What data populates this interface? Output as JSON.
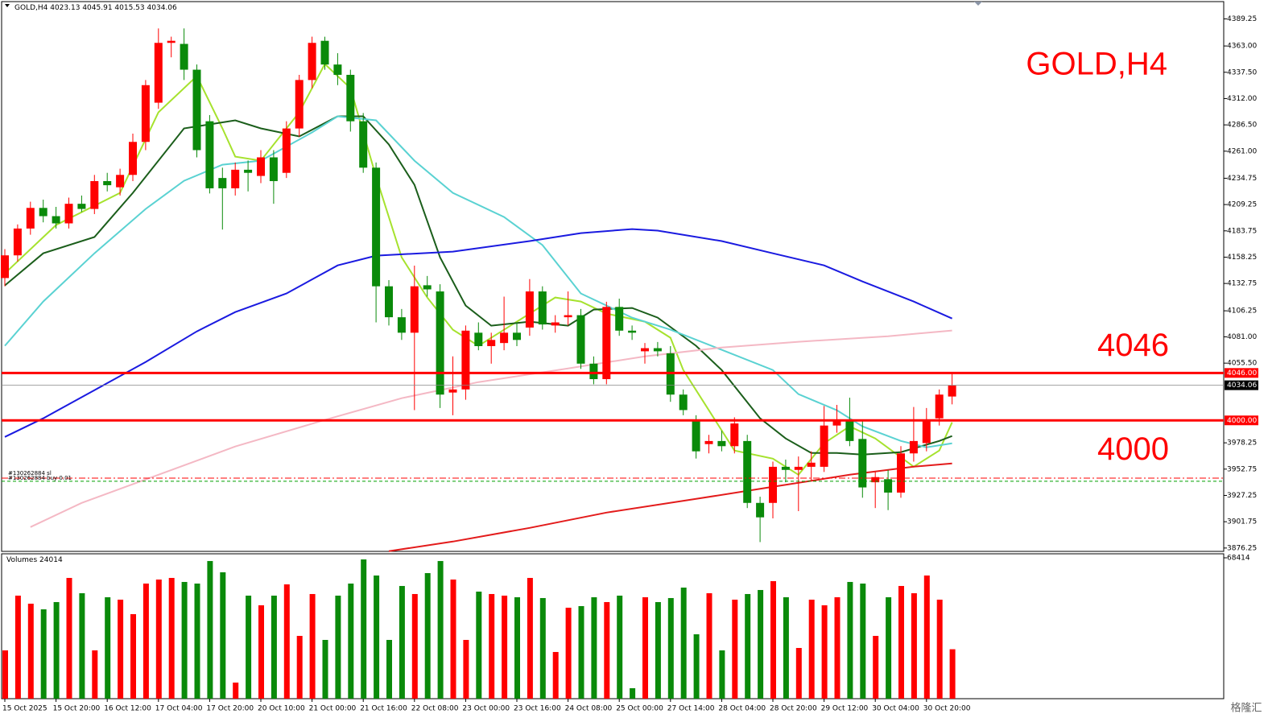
{
  "chart_data": {
    "type": "candlestick",
    "symbol": "GOLD,H4",
    "title": "GOLD,H4",
    "up_color": "#ff0000",
    "down_color": "#0a8a0a",
    "ylim": [
      3873,
      4406
    ],
    "yticks": [
      {
        "value": 4389.25,
        "label": "4389.25"
      },
      {
        "value": 4363,
        "label": "4363.00"
      },
      {
        "value": 4337.5,
        "label": "4337.50"
      },
      {
        "value": 4312,
        "label": "4312.00"
      },
      {
        "value": 4286.5,
        "label": "4286.50"
      },
      {
        "value": 4261,
        "label": "4261.00"
      },
      {
        "value": 4234.75,
        "label": "4234.75"
      },
      {
        "value": 4209.25,
        "label": "4209.25"
      },
      {
        "value": 4183.75,
        "label": "4183.75"
      },
      {
        "value": 4158.25,
        "label": "4158.25"
      },
      {
        "value": 4132.75,
        "label": "4132.75"
      },
      {
        "value": 4106.25,
        "label": "4106.25"
      },
      {
        "value": 4081,
        "label": "4081.00"
      },
      {
        "value": 4055.5,
        "label": "4055.50"
      },
      {
        "value": 3978.25,
        "label": "3978.25"
      },
      {
        "value": 3952.75,
        "label": "3952.75"
      },
      {
        "value": 3927.25,
        "label": "3927.25"
      },
      {
        "value": 3901.75,
        "label": "3901.75"
      },
      {
        "value": 3876.25,
        "label": "3876.25"
      }
    ],
    "categories": [
      "15 Oct 2025",
      null,
      null,
      null,
      "15 Oct 20:00",
      null,
      null,
      null,
      "16 Oct 12:00",
      null,
      null,
      null,
      "17 Oct 04:00",
      null,
      null,
      null,
      "17 Oct 20:00",
      null,
      null,
      null,
      "20 Oct 10:00",
      null,
      null,
      null,
      "21 Oct 00:00",
      null,
      null,
      null,
      "21 Oct 16:00",
      null,
      null,
      null,
      "22 Oct 08:00",
      null,
      null,
      null,
      "23 Oct 00:00",
      null,
      null,
      null,
      "23 Oct 16:00",
      null,
      null,
      null,
      "24 Oct 08:00",
      null,
      null,
      null,
      "25 Oct 00:00",
      null,
      null,
      null,
      "27 Oct 14:00",
      null,
      null,
      null,
      "28 Oct 04:00",
      null,
      null,
      null,
      "28 Oct 20:00",
      null,
      null,
      null,
      "29 Oct 12:00",
      null,
      null,
      null,
      "30 Oct 04:00",
      null,
      null,
      null,
      "30 Oct 20:00",
      null,
      null
    ],
    "ohlc": [
      [
        4138,
        4166,
        4130,
        4160
      ],
      [
        4160,
        4190,
        4154,
        4186
      ],
      [
        4186,
        4212,
        4180,
        4206
      ],
      [
        4206,
        4214,
        4192,
        4198
      ],
      [
        4198,
        4207,
        4186,
        4191
      ],
      [
        4191,
        4216,
        4186,
        4210
      ],
      [
        4210,
        4218,
        4202,
        4205
      ],
      [
        4205,
        4238,
        4200,
        4232
      ],
      [
        4232,
        4240,
        4222,
        4228
      ],
      [
        4226,
        4244,
        4218,
        4238
      ],
      [
        4238,
        4278,
        4232,
        4270
      ],
      [
        4270,
        4330,
        4262,
        4325
      ],
      [
        4308,
        4380,
        4302,
        4366
      ],
      [
        4366,
        4372,
        4352,
        4368
      ],
      [
        4365,
        4380,
        4330,
        4340
      ],
      [
        4340,
        4345,
        4255,
        4262
      ],
      [
        4290,
        4296,
        4220,
        4225
      ],
      [
        4235,
        4245,
        4185,
        4225
      ],
      [
        4225,
        4250,
        4218,
        4243
      ],
      [
        4243,
        4252,
        4222,
        4240
      ],
      [
        4237,
        4262,
        4230,
        4255
      ],
      [
        4255,
        4262,
        4210,
        4232
      ],
      [
        4240,
        4290,
        4235,
        4283
      ],
      [
        4283,
        4335,
        4275,
        4330
      ],
      [
        4330,
        4372,
        4322,
        4366
      ],
      [
        4368,
        4372,
        4340,
        4345
      ],
      [
        4345,
        4356,
        4325,
        4335
      ],
      [
        4335,
        4340,
        4280,
        4290
      ],
      [
        4290,
        4298,
        4240,
        4245
      ],
      [
        4245,
        4250,
        4095,
        4130
      ],
      [
        4130,
        4136,
        4092,
        4100
      ],
      [
        4100,
        4108,
        4078,
        4085
      ],
      [
        4085,
        4150,
        4010,
        4130
      ],
      [
        4131,
        4140,
        4120,
        4127
      ],
      [
        4125,
        4132,
        4012,
        4025
      ],
      [
        4027,
        4062,
        4005,
        4030
      ],
      [
        4030,
        4092,
        4020,
        4087
      ],
      [
        4085,
        4095,
        4068,
        4072
      ],
      [
        4072,
        4085,
        4055,
        4078
      ],
      [
        4075,
        4120,
        4068,
        4085
      ],
      [
        4085,
        4095,
        4072,
        4078
      ],
      [
        4090,
        4137,
        4082,
        4125
      ],
      [
        4125,
        4130,
        4088,
        4093
      ],
      [
        4092,
        4102,
        4085,
        4095
      ],
      [
        4100,
        4125,
        4092,
        4102
      ],
      [
        4102,
        4108,
        4050,
        4055
      ],
      [
        4055,
        4062,
        4035,
        4040
      ],
      [
        4040,
        4115,
        4035,
        4110
      ],
      [
        4110,
        4118,
        4082,
        4087
      ],
      [
        4087,
        4092,
        4078,
        4085
      ],
      [
        4067,
        4075,
        4055,
        4070
      ],
      [
        4070,
        4076,
        4062,
        4067
      ],
      [
        4065,
        4072,
        4018,
        4025
      ],
      [
        4025,
        4030,
        4005,
        4010
      ],
      [
        4000,
        4005,
        3963,
        3970
      ],
      [
        3977,
        3986,
        3968,
        3980
      ],
      [
        3980,
        3990,
        3970,
        3975
      ],
      [
        3975,
        4003,
        3968,
        3997
      ],
      [
        3980,
        3986,
        3915,
        3920
      ],
      [
        3920,
        3926,
        3882,
        3906
      ],
      [
        3920,
        3960,
        3905,
        3955
      ],
      [
        3955,
        3962,
        3940,
        3952
      ],
      [
        3952,
        3965,
        3912,
        3955
      ],
      [
        3955,
        3970,
        3942,
        3959
      ],
      [
        3955,
        4014,
        3950,
        3995
      ],
      [
        3995,
        4015,
        3988,
        4000
      ],
      [
        4000,
        4022,
        3975,
        3980
      ],
      [
        3982,
        4000,
        3925,
        3935
      ],
      [
        3940,
        3950,
        3915,
        3945
      ],
      [
        3943,
        3952,
        3913,
        3930
      ],
      [
        3930,
        3975,
        3925,
        3968
      ],
      [
        3968,
        4013,
        3960,
        3980
      ],
      [
        3978,
        4012,
        3970,
        4000
      ],
      [
        4002,
        4030,
        3995,
        4025
      ],
      [
        4023.13,
        4045.91,
        4015.53,
        4034.06
      ]
    ],
    "lines": [
      {
        "color": "#a6e22e",
        "x": [
          0,
          4,
          9,
          12,
          15,
          17,
          18,
          20,
          23,
          25,
          27,
          29,
          31,
          33,
          35,
          37,
          40,
          43,
          45,
          47,
          50,
          52,
          53,
          55,
          57,
          60,
          62,
          64,
          66,
          68,
          71,
          73,
          74
        ],
        "values": [
          4142.5,
          4189.4,
          4220.6,
          4298.7,
          4333.8,
          4283.1,
          4255.7,
          4251.8,
          4298.7,
          4345.5,
          4322.1,
          4236.2,
          4158.1,
          4119.1,
          4087.9,
          4072.3,
          4095.7,
          4119.1,
          4115.2,
          4103.5,
          4095.7,
          4080.1,
          4048.8,
          4009.8,
          3970.8,
          3962.9,
          3947.3,
          3977.8,
          3994.2,
          3982.5,
          3955.1,
          3970.8,
          3998.1
        ]
      },
      {
        "color": "#1b5e1b",
        "x": [
          0,
          3,
          7,
          10,
          14,
          16,
          18,
          20,
          23,
          26,
          28,
          30,
          32,
          34,
          36,
          38,
          41,
          44,
          46,
          49,
          51,
          54,
          56,
          59,
          61,
          63,
          65,
          67,
          70,
          73,
          74
        ],
        "values": [
          4130.8,
          4162.0,
          4177.7,
          4220.6,
          4283.1,
          4287.0,
          4290.9,
          4283.1,
          4275.3,
          4294.8,
          4294.8,
          4267.5,
          4228.4,
          4158.1,
          4111.3,
          4091.8,
          4095.7,
          4091.8,
          4107.4,
          4109.0,
          4099.6,
          4072.3,
          4048.8,
          4002.0,
          3982.5,
          3968.4,
          3968.4,
          3966.8,
          3969.2,
          3980.1,
          3984.8
        ]
      },
      {
        "color": "#5ad2d2",
        "x": [
          0,
          3,
          7,
          11,
          14,
          17,
          20,
          24,
          26,
          29,
          32,
          35,
          39,
          42,
          45,
          49,
          52,
          56,
          60,
          62,
          65,
          67,
          70,
          72,
          74
        ],
        "values": [
          4072.3,
          4115.2,
          4162.0,
          4205.0,
          4232.3,
          4247.9,
          4251.8,
          4279.2,
          4294.8,
          4290.9,
          4251.8,
          4220.6,
          4197.2,
          4169.9,
          4123.0,
          4099.6,
          4087.9,
          4068.4,
          4048.8,
          4025.4,
          4009.8,
          3994.2,
          3980.1,
          3973.9,
          3977.8
        ]
      },
      {
        "color": "#1a1ae0",
        "x": [
          0,
          3,
          7,
          11,
          15,
          18,
          22,
          26,
          29,
          35,
          41,
          45,
          49,
          51,
          56,
          60,
          64,
          67,
          71,
          74
        ],
        "values": [
          3984.0,
          4002.0,
          4029.3,
          4056.6,
          4086.3,
          4105.0,
          4123.0,
          4150.3,
          4159.7,
          4163.6,
          4173.8,
          4181.6,
          4185.5,
          4184.0,
          4173.8,
          4162.0,
          4150.3,
          4134.7,
          4115.2,
          4098.8
        ]
      },
      {
        "color": "#f4b8c4",
        "x": [
          2,
          6,
          12,
          18,
          25,
          31,
          37,
          44,
          50,
          56,
          62,
          69,
          74
        ],
        "values": [
          3896.6,
          3920.0,
          3947.3,
          3974.7,
          4000.4,
          4021.5,
          4037.1,
          4050.4,
          4062.1,
          4070.7,
          4076.2,
          4081.6,
          4087.1
        ]
      },
      {
        "color": "#e31b1b",
        "x": [
          30,
          35,
          41,
          47,
          54,
          60,
          66,
          71,
          74
        ],
        "values": [
          3873.2,
          3882.5,
          3895.8,
          3910.6,
          3923.9,
          3935.6,
          3947.3,
          3955.1,
          3958.3
        ]
      }
    ],
    "hlines": [
      {
        "value": 4046,
        "label": "4046.00",
        "color": "#ff0000"
      },
      {
        "value": 4000,
        "label": "4000.00",
        "color": "#ff0000"
      }
    ],
    "orders": [
      {
        "label": "#130262884 sl",
        "value": 3944,
        "color": "#ff0000"
      },
      {
        "label": "#130262884 buy 0.01",
        "value": 3941,
        "color": "#00a000"
      }
    ],
    "volume_title": "Volumes",
    "volume_ylim": [
      0,
      68414
    ],
    "volume_yticks": [
      68414
    ],
    "volumes": [
      23460,
      50048,
      46138,
      43401,
      46920,
      58650,
      51221,
      23460,
      49266,
      48093,
      41055,
      55913,
      57868,
      58650,
      56695,
      55913,
      66861,
      61387,
      7820,
      50048,
      45356,
      50048,
      55522,
      30498,
      50830,
      28543,
      50048,
      55913,
      67643,
      59823,
      28543,
      54740,
      50830,
      60996,
      66861,
      57868,
      28543,
      52003,
      50830,
      50048,
      49266,
      58650,
      48875,
      22678,
      44183,
      44965,
      49266,
      46920,
      50048,
      5083,
      49266,
      46920,
      48875,
      53958,
      31280,
      51221,
      23460,
      48093,
      50830,
      52785,
      57086,
      49266,
      24633,
      48093,
      45356,
      49266,
      56695,
      55913,
      30498,
      49266,
      54740,
      51221,
      59823,
      48093,
      24014
    ],
    "watermark": "格隆汇"
  }
}
